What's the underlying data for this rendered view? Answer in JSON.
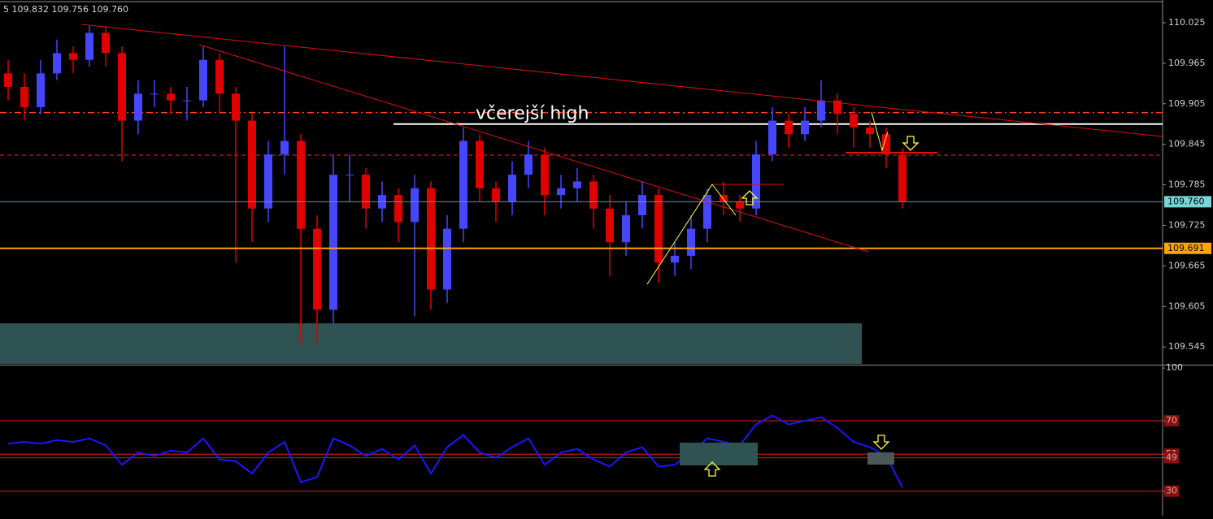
{
  "chart_data": [
    {
      "type": "candlestick",
      "header": "5 109.832 109.756 109.760",
      "up_color": "#4646ff",
      "down_color": "#e00000",
      "ylim": [
        109.52,
        110.055
      ],
      "yticks": [
        110.025,
        109.965,
        109.905,
        109.845,
        109.785,
        109.725,
        109.665,
        109.605,
        109.545
      ],
      "open": [
        109.95,
        109.93,
        109.9,
        109.95,
        109.98,
        109.97,
        110.01,
        109.98,
        109.88,
        109.92,
        109.92,
        109.91,
        109.91,
        109.97,
        109.92,
        109.88,
        109.75,
        109.83,
        109.85,
        109.72,
        109.6,
        109.8,
        109.8,
        109.75,
        109.77,
        109.73,
        109.78,
        109.63,
        109.72,
        109.85,
        109.78,
        109.76,
        109.8,
        109.83,
        109.77,
        109.78,
        109.79,
        109.75,
        109.7,
        109.74,
        109.77,
        109.67,
        109.68,
        109.72,
        109.77,
        109.76,
        109.75,
        109.83,
        109.88,
        109.86,
        109.88,
        109.91,
        109.89,
        109.87,
        109.86,
        109.83
      ],
      "high": [
        109.97,
        109.95,
        109.97,
        110.0,
        109.99,
        110.02,
        110.02,
        109.99,
        109.94,
        109.94,
        109.93,
        109.93,
        109.99,
        109.98,
        109.93,
        109.89,
        109.85,
        109.99,
        109.86,
        109.74,
        109.83,
        109.83,
        109.81,
        109.79,
        109.78,
        109.8,
        109.79,
        109.74,
        109.87,
        109.86,
        109.79,
        109.82,
        109.85,
        109.84,
        109.8,
        109.81,
        109.8,
        109.77,
        109.76,
        109.79,
        109.78,
        109.7,
        109.74,
        109.78,
        109.79,
        109.77,
        109.85,
        109.9,
        109.89,
        109.9,
        109.94,
        109.92,
        109.9,
        109.88,
        109.87,
        109.84
      ],
      "low": [
        109.91,
        109.88,
        109.89,
        109.94,
        109.95,
        109.96,
        109.96,
        109.82,
        109.86,
        109.9,
        109.89,
        109.88,
        109.9,
        109.89,
        109.67,
        109.7,
        109.73,
        109.8,
        109.55,
        109.55,
        109.58,
        109.76,
        109.72,
        109.73,
        109.7,
        109.59,
        109.6,
        109.61,
        109.7,
        109.76,
        109.73,
        109.74,
        109.78,
        109.74,
        109.75,
        109.76,
        109.72,
        109.65,
        109.68,
        109.72,
        109.64,
        109.65,
        109.66,
        109.7,
        109.74,
        109.73,
        109.74,
        109.82,
        109.84,
        109.85,
        109.87,
        109.86,
        109.84,
        109.84,
        109.81,
        109.75
      ],
      "close": [
        109.93,
        109.9,
        109.95,
        109.98,
        109.97,
        110.01,
        109.98,
        109.88,
        109.92,
        109.92,
        109.91,
        109.91,
        109.97,
        109.92,
        109.88,
        109.75,
        109.83,
        109.85,
        109.72,
        109.6,
        109.8,
        109.8,
        109.75,
        109.77,
        109.73,
        109.78,
        109.63,
        109.72,
        109.85,
        109.78,
        109.76,
        109.8,
        109.83,
        109.77,
        109.78,
        109.79,
        109.75,
        109.7,
        109.74,
        109.77,
        109.67,
        109.68,
        109.72,
        109.77,
        109.76,
        109.75,
        109.83,
        109.88,
        109.86,
        109.88,
        109.91,
        109.89,
        109.87,
        109.86,
        109.83,
        109.76
      ],
      "levels": [
        {
          "value": 109.892,
          "color": "#ff4020",
          "style": "dashdot"
        },
        {
          "value": 109.829,
          "color": "#ff2020",
          "style": "dashed"
        }
      ],
      "price_labels": [
        {
          "value": 109.76,
          "label": "109.760",
          "color": "#7ad6d6"
        },
        {
          "value": 109.691,
          "label": "109.691",
          "color": "#ffa500"
        }
      ],
      "annotation": {
        "text": "včerejší high",
        "value": 109.875
      },
      "zone": {
        "from": 109.58,
        "to": 109.52,
        "color": "#2f5252"
      }
    },
    {
      "type": "line",
      "values": [
        57,
        58,
        57,
        59,
        58,
        60,
        56,
        45,
        52,
        50,
        53,
        52,
        60,
        48,
        47,
        40,
        52,
        58,
        35,
        38,
        60,
        56,
        50,
        54,
        48,
        56,
        40,
        55,
        62,
        52,
        49,
        55,
        60,
        45,
        52,
        54,
        48,
        44,
        52,
        55,
        44,
        45,
        52,
        60,
        58,
        56,
        68,
        73,
        68,
        70,
        72,
        66,
        58,
        55,
        50,
        32
      ],
      "color": "#1818ff",
      "ylim": [
        16,
        101
      ],
      "yticks": [
        100,
        70,
        51,
        49,
        30
      ],
      "levels": [
        70,
        51,
        49,
        30
      ],
      "level_color": "#c01818"
    }
  ]
}
